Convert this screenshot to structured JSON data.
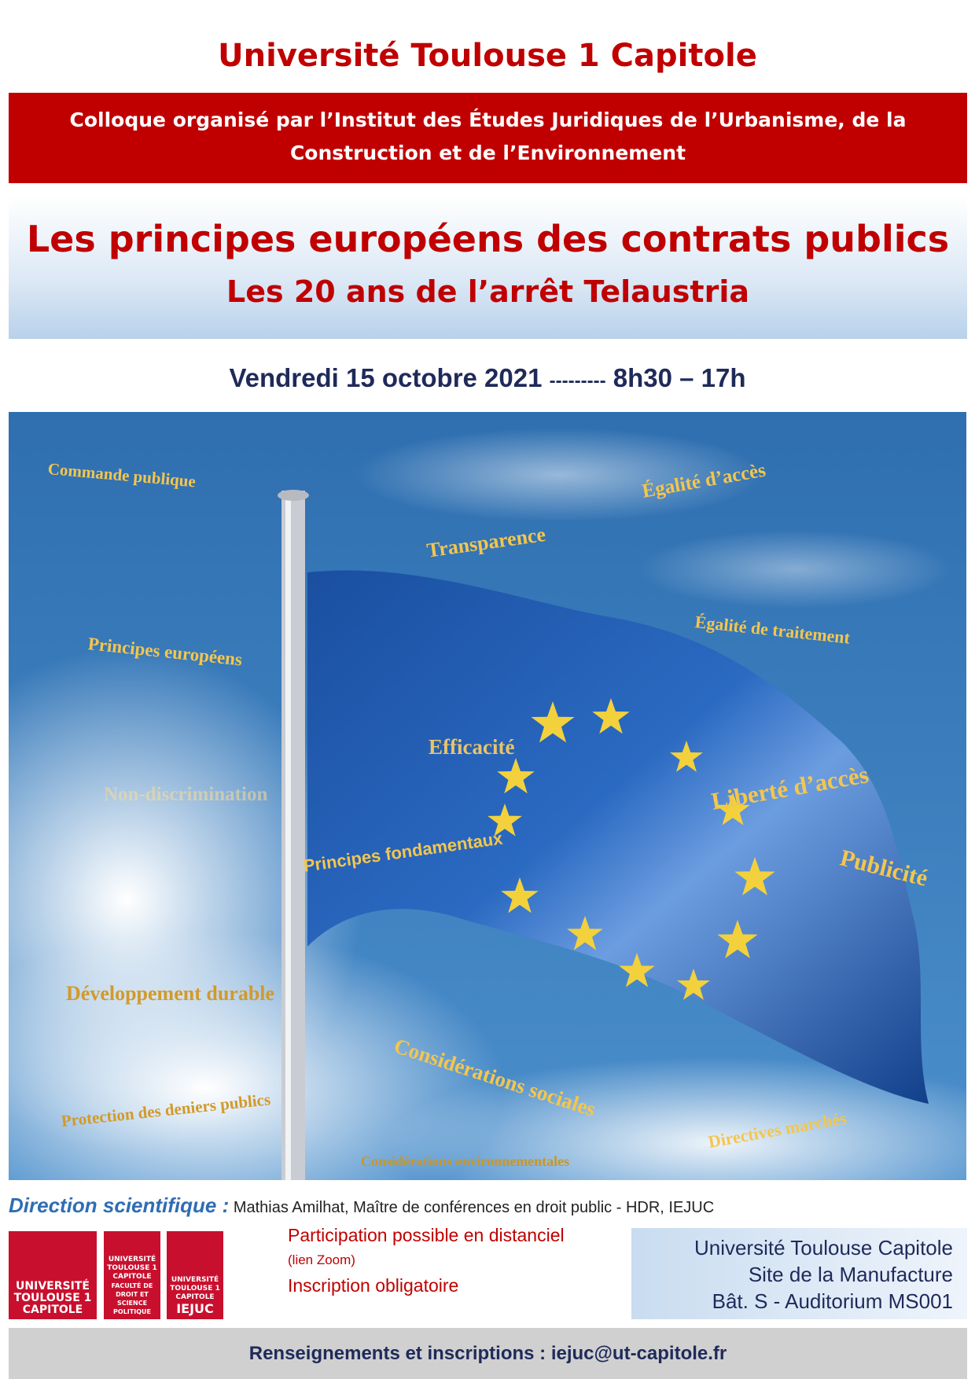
{
  "header": {
    "title": "Université Toulouse 1 Capitole",
    "band_lines": [
      "Colloque organisé par l’Institut des Études Juridiques de l’Urbanisme, de la",
      "Construction et de l’Environnement"
    ]
  },
  "event": {
    "title": "Les principes européens des contrats publics",
    "subtitle": "Les 20 ans de l’arrêt Telaustria",
    "date": "Vendredi 15 octobre 2021",
    "separator": "---------",
    "time": "8h30 – 17h"
  },
  "keywords": [
    "Commande publique",
    "Égalité d’accès",
    "Transparence",
    "Égalité de traitement",
    "Principes européens",
    "Efficacité",
    "Non-discrimination",
    "Liberté d’accès",
    "Publicité",
    "Principes fondamentaux",
    "Développement durable",
    "Considérations sociales",
    "Protection des deniers publics",
    "Considérations environnementales",
    "Directives marchés"
  ],
  "direction": {
    "label": "Direction scientifique :",
    "text": "Mathias Amilhat, Maître de conférences en droit public - HDR, IEJUC"
  },
  "logos": [
    {
      "lines": [
        "UNIVERSITÉ",
        "TOULOUSE 1",
        "CAPITOLE"
      ]
    },
    {
      "lines": [
        "UNIVERSITÉ",
        "TOULOUSE 1",
        "CAPITOLE",
        "FACULTÉ DE DROIT ET SCIENCE POLITIQUE"
      ]
    },
    {
      "lines": [
        "UNIVERSITÉ",
        "TOULOUSE 1",
        "CAPITOLE",
        "IEJUC"
      ]
    }
  ],
  "participation": [
    "Participation possible en distanciel",
    "(lien Zoom)",
    "Inscription obligatoire"
  ],
  "address": [
    "Université Toulouse Capitole",
    "Site de la Manufacture",
    "Bât. S - Auditorium MS001"
  ],
  "footer": "Renseignements et inscriptions : iejuc@ut-capitole.fr"
}
